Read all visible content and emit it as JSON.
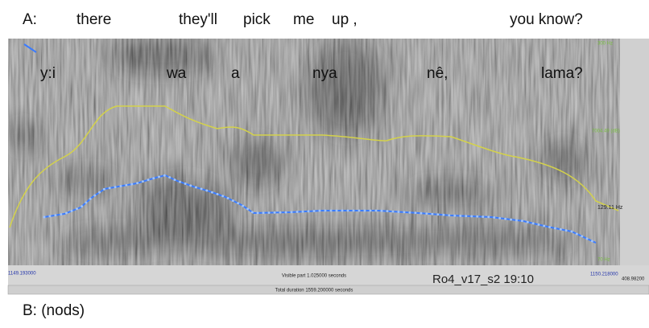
{
  "transcript_top": {
    "speaker": "A:",
    "words": [
      "there",
      "they'll",
      "pick",
      "me",
      "up ,",
      "you know?"
    ]
  },
  "gloss": [
    "y:i",
    "wa",
    "a",
    "nya",
    "nê,",
    "lama?"
  ],
  "spectrogram": {
    "right_labels": [
      "300 Hz",
      "7004.49 (dB)",
      "129.11 Hz",
      "70 Hz"
    ],
    "bottom": {
      "start": "1149.193000",
      "visible": "Visible part 1.025000 seconds",
      "file": "Ro4_v17_s2  19:10",
      "end": "1150.218000",
      "corner": "408.98200",
      "total": "Total duration 1559.200000 seconds"
    }
  },
  "transcript_bottom": "B: (nods)"
}
